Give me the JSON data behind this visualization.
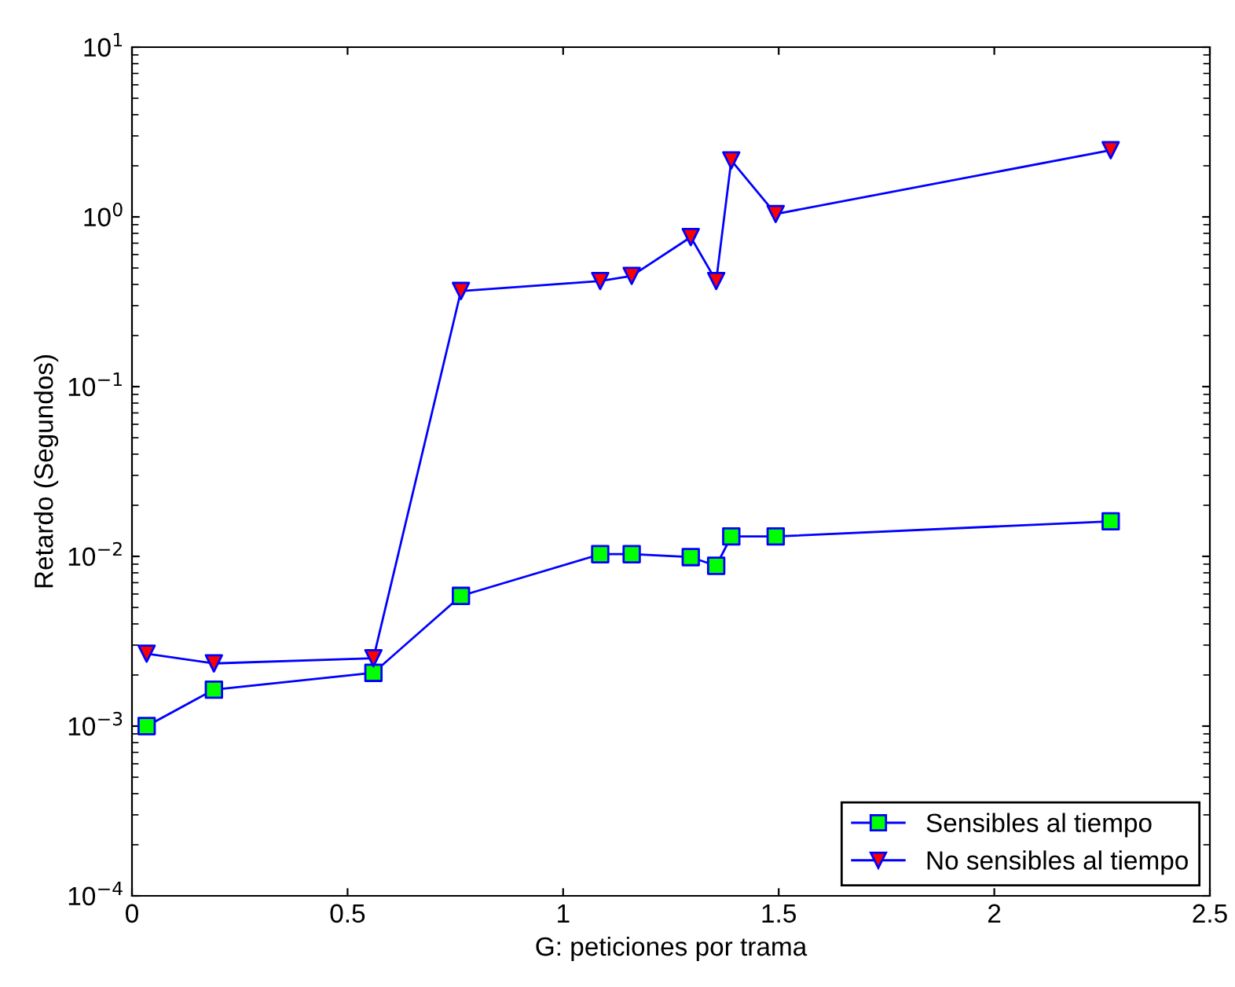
{
  "chart_data": {
    "type": "line",
    "xlabel": "G: peticiones por trama",
    "ylabel": "Retardo (Segundos)",
    "log": "y",
    "xlim": [
      0,
      2.5
    ],
    "xticks": [
      0,
      0.5,
      1,
      1.5,
      2,
      2.5
    ],
    "ylim": [
      0.0001,
      10
    ],
    "yticks": [
      {
        "value": 0.0001,
        "label": "10$^{−4}$"
      },
      {
        "value": 0.001,
        "label": "10$^{−3}$"
      },
      {
        "value": 0.01,
        "label": "10$^{−2}$"
      },
      {
        "value": 0.1,
        "label": "10$^{−1}$"
      },
      {
        "value": 1,
        "label": "10$^{0}$"
      },
      {
        "value": 10,
        "label": "10$^{1}$"
      }
    ],
    "grid": false,
    "legend": "bottom right",
    "series": [
      {
        "name": "Sensibles al tiempo",
        "color": "#0000ff",
        "marker": "square",
        "x": [
          0.034,
          0.19,
          0.56,
          0.763,
          1.086,
          1.159,
          1.296,
          1.355,
          1.39,
          1.493,
          2.27
        ],
        "values": [
          0.001,
          0.00164,
          0.00206,
          0.00585,
          0.0103,
          0.0103,
          0.0099,
          0.0088,
          0.0131,
          0.0131,
          0.0161
        ],
        "colors": [
          "#00ff00",
          "#00ff00",
          "#00ff00",
          "#00ff00",
          "#00ff00",
          "#00ff00",
          "#00ff00",
          "#00ff00",
          "#00ff00",
          "#00ff00",
          "#00ff00"
        ]
      },
      {
        "name": "No sensibles al tiempo",
        "color": "#0000ff",
        "marker": "triangle",
        "x": [
          0.034,
          0.19,
          0.56,
          0.763,
          1.086,
          1.159,
          1.296,
          1.355,
          1.39,
          1.493,
          2.27
        ],
        "values": [
          0.00267,
          0.00234,
          0.00251,
          0.366,
          0.419,
          0.449,
          0.76,
          0.419,
          2.15,
          1.04,
          2.47
        ],
        "colors": [
          "#ff0000",
          "#ff0000",
          "#ff0000",
          "#ff0000",
          "#ff0000",
          "#ff0000",
          "#ff0000",
          "#ff0000",
          "#ff0000",
          "#ff0000",
          "#ff0000"
        ]
      }
    ]
  }
}
